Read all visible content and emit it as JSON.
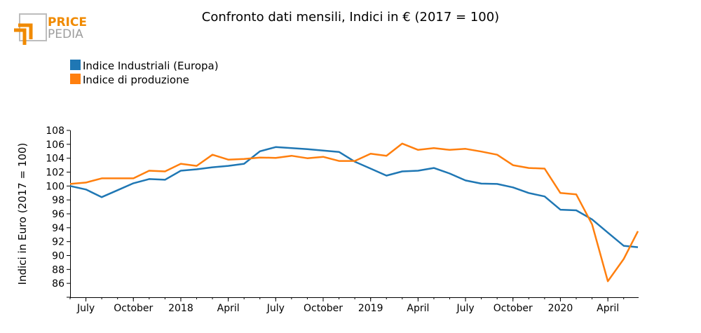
{
  "logo": {
    "word1": "PRICE",
    "word2": "PEDIA"
  },
  "chart_data": {
    "type": "line",
    "title": "Confronto dati mensili, Indici in € (2017 = 100)",
    "xlabel": "",
    "ylabel": "Indici in Euro (2017 = 100)",
    "ylim": [
      84,
      108
    ],
    "yticks": [
      86,
      88,
      90,
      92,
      94,
      96,
      98,
      100,
      102,
      104,
      106,
      108
    ],
    "x_categories": [
      "2017-06",
      "2017-07",
      "2017-08",
      "2017-09",
      "2017-10",
      "2017-11",
      "2017-12",
      "2018-01",
      "2018-02",
      "2018-03",
      "2018-04",
      "2018-05",
      "2018-06",
      "2018-07",
      "2018-08",
      "2018-09",
      "2018-10",
      "2018-11",
      "2018-12",
      "2019-01",
      "2019-02",
      "2019-03",
      "2019-04",
      "2019-05",
      "2019-06",
      "2019-07",
      "2019-08",
      "2019-09",
      "2019-10",
      "2019-11",
      "2019-12",
      "2020-01",
      "2020-02",
      "2020-03",
      "2020-04",
      "2020-05",
      "2020-06"
    ],
    "xticks": [
      {
        "index": 1,
        "label": "July"
      },
      {
        "index": 4,
        "label": "October"
      },
      {
        "index": 7,
        "label": "2018"
      },
      {
        "index": 10,
        "label": "April"
      },
      {
        "index": 13,
        "label": "July"
      },
      {
        "index": 16,
        "label": "October"
      },
      {
        "index": 19,
        "label": "2019"
      },
      {
        "index": 22,
        "label": "April"
      },
      {
        "index": 25,
        "label": "July"
      },
      {
        "index": 28,
        "label": "October"
      },
      {
        "index": 31,
        "label": "2020"
      },
      {
        "index": 34,
        "label": "April"
      }
    ],
    "x_end": 35.9,
    "series": [
      {
        "name": "Indice Industriali (Europa)",
        "color": "#1f77b4",
        "values": [
          100.0,
          99.5,
          98.4,
          99.4,
          100.4,
          101.0,
          100.9,
          102.2,
          102.4,
          102.7,
          102.9,
          103.2,
          105.0,
          105.6,
          105.45,
          105.3,
          105.1,
          104.9,
          103.5,
          102.5,
          101.5,
          102.1,
          102.2,
          102.6,
          101.8,
          100.8,
          100.35,
          100.3,
          99.8,
          99.0,
          98.5,
          96.6,
          96.5,
          95.2,
          93.3,
          91.4,
          91.2
        ],
        "x_last": 35.9
      },
      {
        "name": "Indice di produzione",
        "color": "#ff7f0e",
        "values": [
          100.3,
          100.5,
          101.1,
          101.1,
          101.1,
          102.2,
          102.1,
          103.2,
          102.9,
          104.5,
          103.8,
          103.9,
          104.1,
          104.05,
          104.35,
          104.0,
          104.2,
          103.6,
          103.6,
          104.65,
          104.35,
          106.1,
          105.2,
          105.45,
          105.2,
          105.35,
          104.95,
          104.5,
          103.0,
          102.6,
          102.5,
          99.0,
          98.8,
          94.5,
          86.3,
          89.5,
          93.5
        ],
        "x_last": 35.9
      }
    ],
    "legend": "top-left"
  }
}
